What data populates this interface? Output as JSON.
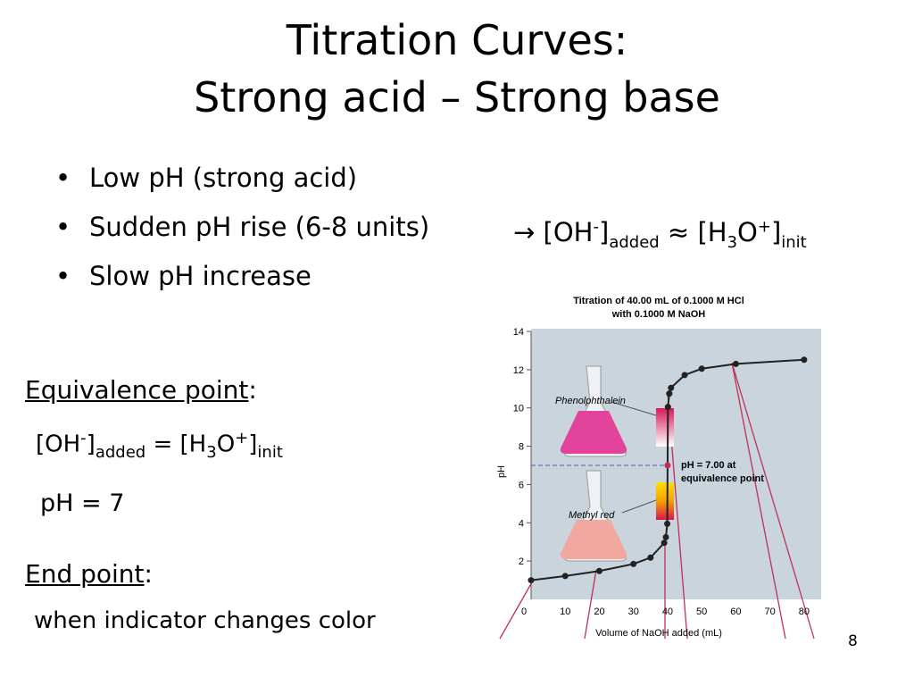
{
  "slide": {
    "title_line1": "Titration Curves:",
    "title_line2": "Strong acid – Strong base",
    "bullets": [
      "Low pH (strong acid)",
      "Sudden pH rise (6-8 units)",
      "Slow pH increase"
    ],
    "arrow_note": {
      "arrow": "→",
      "parts": [
        " [OH",
        "-",
        "]",
        "added",
        " ≈ [H",
        "3",
        "O",
        "+",
        "]",
        "init"
      ]
    },
    "equivalence": {
      "heading": "Equivalence point",
      "colon": ":",
      "parts": [
        "[OH",
        "-",
        "]",
        "added",
        " = [H",
        "3",
        "O",
        "+",
        "]",
        "init"
      ],
      "ph": "pH = 7"
    },
    "end_point": {
      "heading": "End point",
      "colon": ":",
      "text": "when indicator changes color"
    },
    "page_number": "8"
  },
  "chart_data": {
    "type": "line",
    "title": [
      "Titration of 40.00 mL of 0.1000 M HCl",
      "with 0.1000 M NaOH"
    ],
    "x_label": "Volume of NaOH added (mL)",
    "y_label": "pH",
    "x": [
      0,
      10,
      20,
      30,
      35,
      39,
      39.5,
      39.9,
      40,
      40.1,
      40.5,
      41,
      45,
      50,
      60,
      80
    ],
    "values": [
      1.0,
      1.22,
      1.48,
      1.85,
      2.18,
      2.95,
      3.25,
      3.95,
      7.0,
      10.05,
      10.75,
      11.05,
      11.72,
      12.05,
      12.3,
      12.52
    ],
    "color": "#222222",
    "xlim": [
      0,
      85
    ],
    "ylim": [
      0,
      14
    ],
    "xticks": [
      0,
      10,
      20,
      30,
      40,
      50,
      60,
      70,
      80
    ],
    "yticks": [
      2,
      4,
      6,
      8,
      10,
      12,
      14
    ],
    "annotations": [
      "Phenolphthalein",
      "Methyl red",
      "pH = 7.00 at",
      "equivalence point"
    ]
  }
}
